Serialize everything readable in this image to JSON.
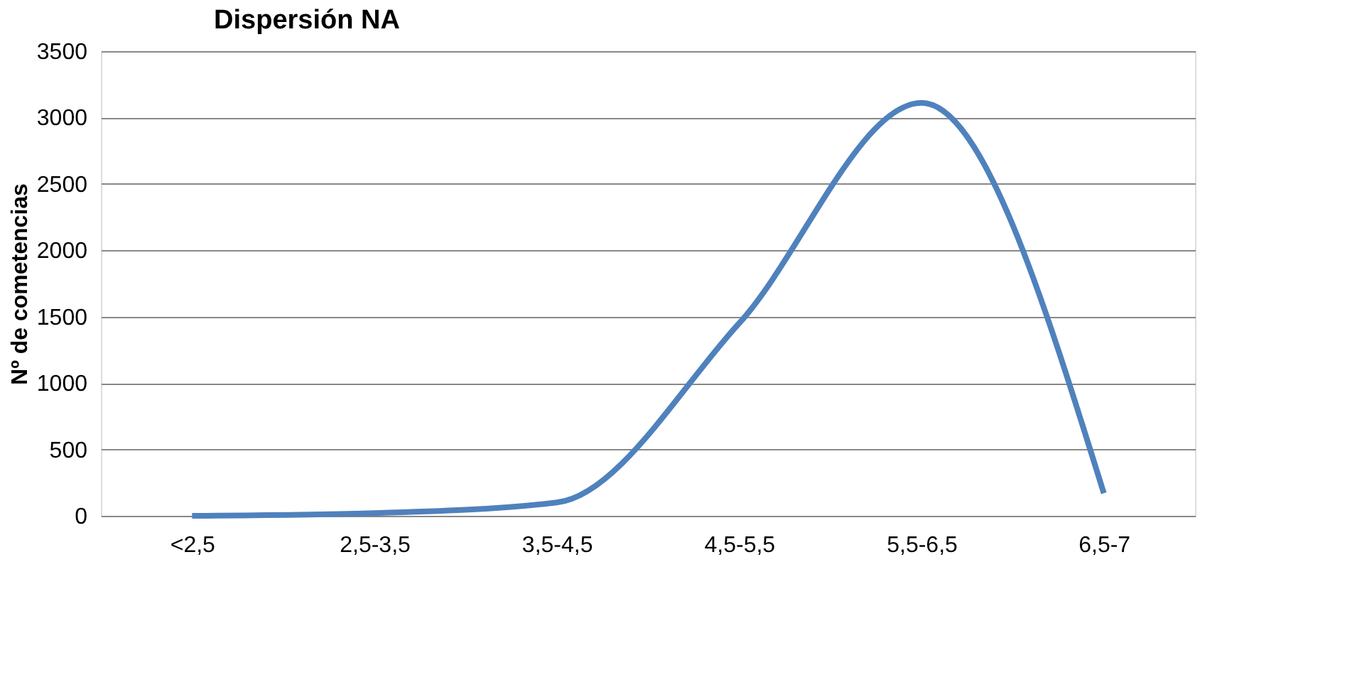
{
  "chart_data": {
    "type": "line",
    "title": "Dispersión NA",
    "ylabel": "Nº de cometencias",
    "categories": [
      "<2,5",
      "2,5-3,5",
      "3,5-4,5",
      "4,5-5,5",
      "5,5-6,5",
      "6,5-7"
    ],
    "series": [
      {
        "color": "#4f81bd",
        "values": [
          0,
          20,
          100,
          1450,
          3110,
          170
        ]
      }
    ],
    "ylim": [
      0,
      3500
    ],
    "yticks": [
      0,
      500,
      1000,
      1500,
      2000,
      2500,
      3000,
      3500
    ],
    "grid": "y",
    "marker": "none",
    "line_style": "solid"
  }
}
